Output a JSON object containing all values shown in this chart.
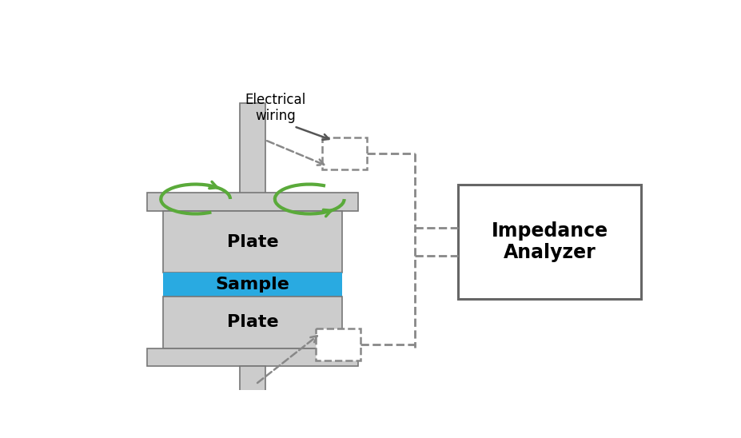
{
  "bg_color": "#ffffff",
  "plate_color": "#cccccc",
  "sample_color": "#29aae1",
  "edge_color": "#777777",
  "dash_color": "#888888",
  "green_color": "#5aaa3a",
  "analyzer_edge": "#666666",
  "plate_label": "Plate",
  "sample_label": "Sample",
  "analyzer_label": "Impedance\nAnalyzer",
  "wiring_label": "Electrical\nwiring",
  "sample_text_color": "#000000",
  "fig_w": 9.28,
  "fig_h": 5.48
}
